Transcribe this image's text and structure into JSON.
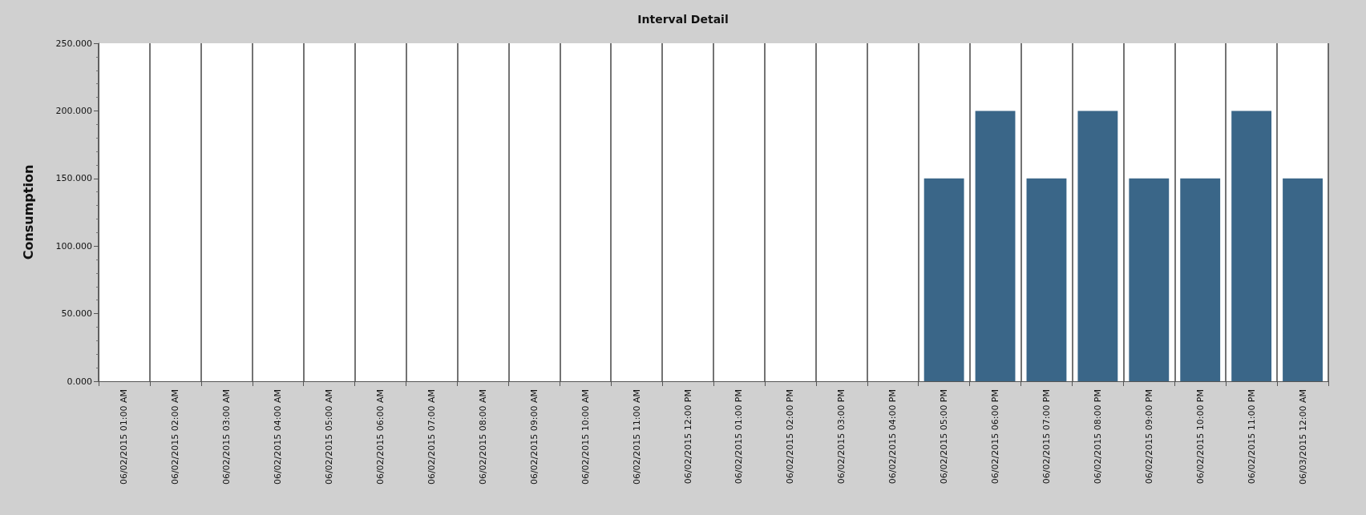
{
  "chart_data": {
    "type": "bar",
    "title": "Interval Detail",
    "ylabel": "Consumption",
    "categories": [
      "06/02/2015 01:00 AM",
      "06/02/2015 02:00 AM",
      "06/02/2015 03:00 AM",
      "06/02/2015 04:00 AM",
      "06/02/2015 05:00 AM",
      "06/02/2015 06:00 AM",
      "06/02/2015 07:00 AM",
      "06/02/2015 08:00 AM",
      "06/02/2015 09:00 AM",
      "06/02/2015 10:00 AM",
      "06/02/2015 11:00 AM",
      "06/02/2015 12:00 PM",
      "06/02/2015 01:00 PM",
      "06/02/2015 02:00 PM",
      "06/02/2015 03:00 PM",
      "06/02/2015 04:00 PM",
      "06/02/2015 05:00 PM",
      "06/02/2015 06:00 PM",
      "06/02/2015 07:00 PM",
      "06/02/2015 08:00 PM",
      "06/02/2015 09:00 PM",
      "06/02/2015 10:00 PM",
      "06/02/2015 11:00 PM",
      "06/03/2015 12:00 AM"
    ],
    "values": [
      0,
      0,
      0,
      0,
      0,
      0,
      0,
      0,
      0,
      0,
      0,
      0,
      0,
      0,
      0,
      0,
      150,
      200,
      150,
      200,
      150,
      150,
      200,
      150
    ],
    "color": "#3a6688",
    "ylim": [
      0,
      250
    ],
    "yticks": [
      {
        "value": 0,
        "label": "0.000"
      },
      {
        "value": 50,
        "label": "50.000"
      },
      {
        "value": 100,
        "label": "100.000"
      },
      {
        "value": 150,
        "label": "150.000"
      },
      {
        "value": 200,
        "label": "200.000"
      },
      {
        "value": 250,
        "label": "250.000"
      }
    ],
    "grid": "x"
  }
}
